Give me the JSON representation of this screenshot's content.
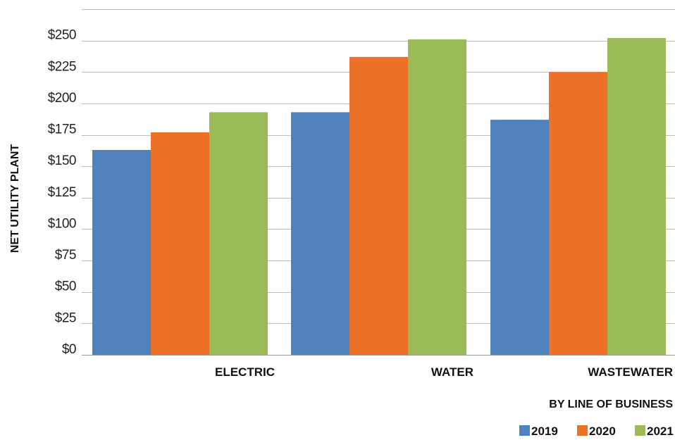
{
  "chart_data": {
    "type": "bar",
    "title": "",
    "xlabel": "BY LINE OF BUSINESS",
    "ylabel": "NET UTILITY PLANT",
    "categories": [
      "ELECTRIC",
      "WATER",
      "WASTEWATER"
    ],
    "series": [
      {
        "name": "2019",
        "color": "#4f81bd",
        "values": [
          163,
          193,
          187
        ]
      },
      {
        "name": "2020",
        "color": "#ec7026",
        "values": [
          177,
          237,
          225
        ]
      },
      {
        "name": "2021",
        "color": "#9bbb59",
        "values": [
          193,
          251,
          252
        ]
      }
    ],
    "ylim": [
      0,
      275
    ],
    "yticks": [
      0,
      25,
      50,
      75,
      100,
      125,
      150,
      175,
      200,
      225,
      250
    ],
    "ytick_labels": [
      "$0",
      "$25",
      "$50",
      "$75",
      "$100",
      "$125",
      "$150",
      "$175",
      "$200",
      "$225",
      "$250"
    ],
    "grid": true,
    "legend_position": "bottom-right"
  }
}
